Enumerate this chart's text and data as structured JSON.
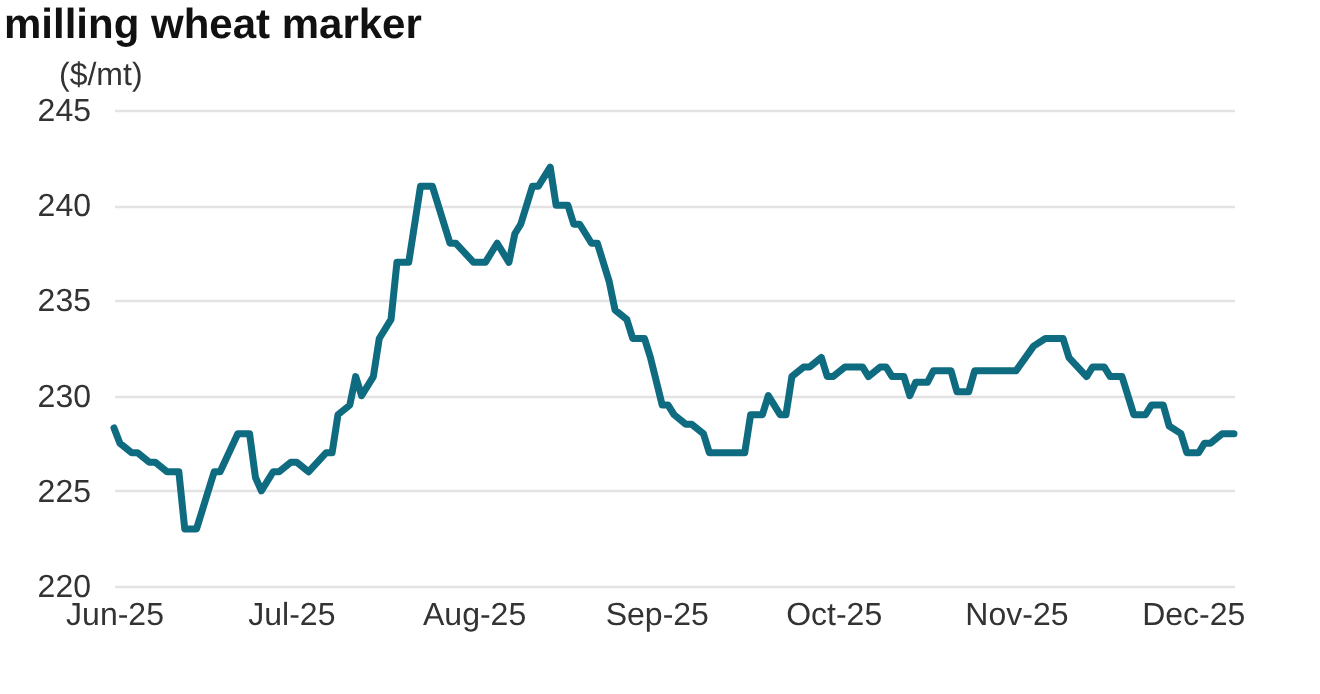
{
  "chart_data": {
    "type": "line",
    "title": "milling wheat marker",
    "ylabel": "($/mt)",
    "x": [
      "2025-06-01",
      "2025-06-02",
      "2025-06-04",
      "2025-06-05",
      "2025-06-07",
      "2025-06-08",
      "2025-06-10",
      "2025-06-12",
      "2025-06-13",
      "2025-06-15",
      "2025-06-16",
      "2025-06-18",
      "2025-06-19",
      "2025-06-22",
      "2025-06-24",
      "2025-06-25",
      "2025-06-26",
      "2025-06-28",
      "2025-06-29",
      "2025-07-01",
      "2025-07-02",
      "2025-07-04",
      "2025-07-07",
      "2025-07-08",
      "2025-07-09",
      "2025-07-11",
      "2025-07-12",
      "2025-07-13",
      "2025-07-15",
      "2025-07-16",
      "2025-07-18",
      "2025-07-19",
      "2025-07-21",
      "2025-07-23",
      "2025-07-25",
      "2025-07-28",
      "2025-07-29",
      "2025-08-01",
      "2025-08-03",
      "2025-08-05",
      "2025-08-07",
      "2025-08-08",
      "2025-08-09",
      "2025-08-11",
      "2025-08-12",
      "2025-08-14",
      "2025-08-15",
      "2025-08-17",
      "2025-08-18",
      "2025-08-19",
      "2025-08-21",
      "2025-08-22",
      "2025-08-24",
      "2025-08-25",
      "2025-08-27",
      "2025-08-28",
      "2025-08-30",
      "2025-08-31",
      "2025-09-02",
      "2025-09-03",
      "2025-09-04",
      "2025-09-06",
      "2025-09-07",
      "2025-09-09",
      "2025-09-10",
      "2025-09-16",
      "2025-09-17",
      "2025-09-19",
      "2025-09-20",
      "2025-09-22",
      "2025-09-23",
      "2025-09-24",
      "2025-09-26",
      "2025-09-27",
      "2025-09-29",
      "2025-09-30",
      "2025-10-01",
      "2025-10-03",
      "2025-10-06",
      "2025-10-07",
      "2025-10-09",
      "2025-10-10",
      "2025-10-11",
      "2025-10-13",
      "2025-10-14",
      "2025-10-15",
      "2025-10-17",
      "2025-10-18",
      "2025-10-21",
      "2025-10-22",
      "2025-10-24",
      "2025-10-25",
      "2025-11-01",
      "2025-11-04",
      "2025-11-06",
      "2025-11-09",
      "2025-11-10",
      "2025-11-13",
      "2025-11-14",
      "2025-11-16",
      "2025-11-17",
      "2025-11-19",
      "2025-11-21",
      "2025-11-23",
      "2025-11-24",
      "2025-11-26",
      "2025-11-27",
      "2025-11-29",
      "2025-11-30",
      "2025-12-02",
      "2025-12-03",
      "2025-12-04",
      "2025-12-06",
      "2025-12-08"
    ],
    "values": [
      228.3,
      227.5,
      227,
      227,
      226.5,
      226.5,
      226,
      226,
      223,
      223,
      224,
      226,
      226,
      228,
      228,
      225.7,
      225,
      226,
      226,
      226.5,
      226.5,
      226,
      227,
      227,
      229,
      229.5,
      231,
      230,
      231,
      233,
      234,
      237,
      237,
      241,
      241,
      238,
      238,
      237,
      237,
      238,
      237,
      238.5,
      239,
      241,
      241,
      242,
      240,
      240,
      239,
      239,
      238,
      238,
      236,
      234.5,
      234,
      233,
      233,
      232,
      229.5,
      229.5,
      229,
      228.5,
      228.5,
      228,
      227,
      227,
      229,
      229,
      230,
      229,
      229,
      231,
      231.5,
      231.5,
      232,
      231,
      231,
      231.5,
      231.5,
      231,
      231.5,
      231.5,
      231,
      231,
      230,
      230.7,
      230.7,
      231.3,
      231.3,
      230.2,
      230.2,
      231.3,
      231.3,
      232.6,
      233,
      233,
      232,
      231,
      231.5,
      231.5,
      231,
      231,
      229,
      229,
      229.5,
      229.5,
      228.4,
      228,
      227,
      227,
      227.5,
      227.5,
      228,
      228
    ],
    "color": "#0f6b80",
    "xlim": [
      "2025-06-01",
      "2025-12-08"
    ],
    "xticks": [
      {
        "value": "2025-06-01",
        "label": "Jun-25"
      },
      {
        "value": "2025-07-01",
        "label": "Jul-25"
      },
      {
        "value": "2025-08-01",
        "label": "Aug-25"
      },
      {
        "value": "2025-09-01",
        "label": "Sep-25"
      },
      {
        "value": "2025-10-01",
        "label": "Oct-25"
      },
      {
        "value": "2025-11-01",
        "label": "Nov-25"
      },
      {
        "value": "2025-12-01",
        "label": "Dec-25"
      }
    ],
    "ylim": [
      220,
      245
    ],
    "yticks": [
      220,
      225,
      230,
      235,
      240,
      245
    ],
    "grid": "y"
  }
}
